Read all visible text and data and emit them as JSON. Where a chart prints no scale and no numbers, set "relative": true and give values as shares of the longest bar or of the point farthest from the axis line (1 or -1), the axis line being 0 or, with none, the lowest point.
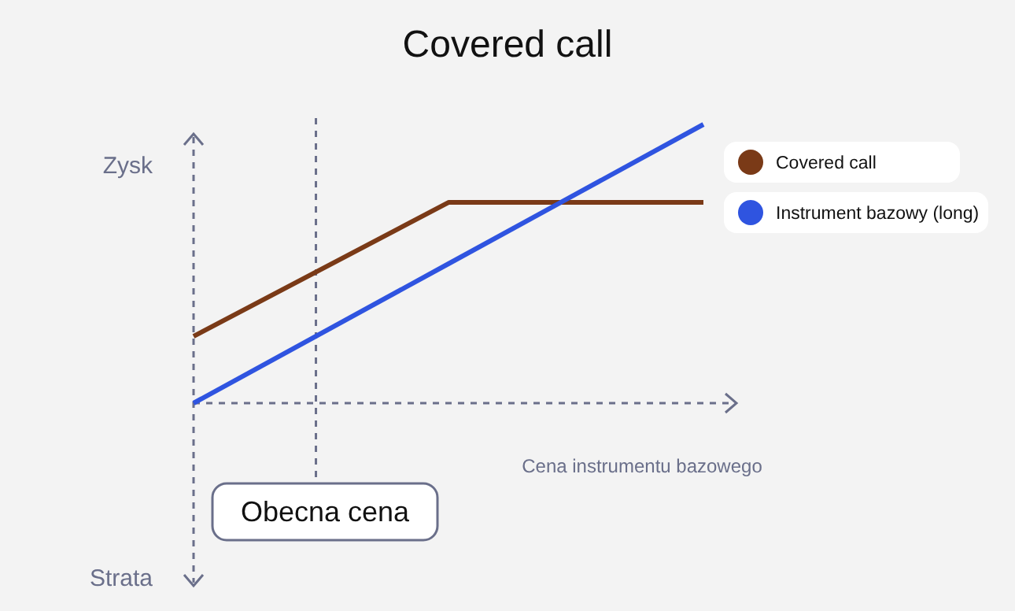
{
  "chart_data": {
    "type": "line",
    "title": "Covered call",
    "xlabel": "Cena instrumentu bazowego",
    "ylabel": "Zysk",
    "annotations": [
      "Strata",
      "Obecna cena"
    ],
    "relative": true,
    "categories": [
      null,
      null,
      null
    ],
    "series": [
      {
        "name": "Covered call",
        "color": "#7a3a17",
        "values": [
          0.24,
          0.72,
          0.72
        ]
      },
      {
        "name": "Instrument bazowy (long)",
        "color": "#2f54e0",
        "values": [
          0,
          0.5,
          1
        ]
      }
    ],
    "legend": "right"
  }
}
